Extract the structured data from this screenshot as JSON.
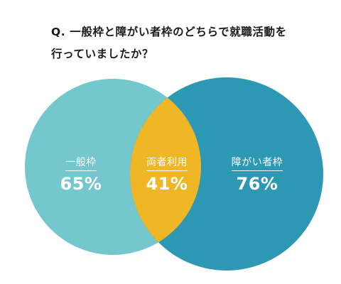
{
  "question": {
    "line1": "Q. 一般枠と障がい者枠のどちらで就職活動を",
    "line2": "行っていましたか？"
  },
  "venn": {
    "left": {
      "label": "一般枠",
      "value": "65%"
    },
    "overlap": {
      "label": "両者利用",
      "value": "41%"
    },
    "right": {
      "label": "障がい者枠",
      "value": "76%"
    }
  },
  "colors": {
    "left_circle": "#73c7cd",
    "right_circle": "#2d98b3",
    "overlap": "#efb726",
    "label_text": "#ffffff",
    "question_text": "#1a1a1a"
  }
}
